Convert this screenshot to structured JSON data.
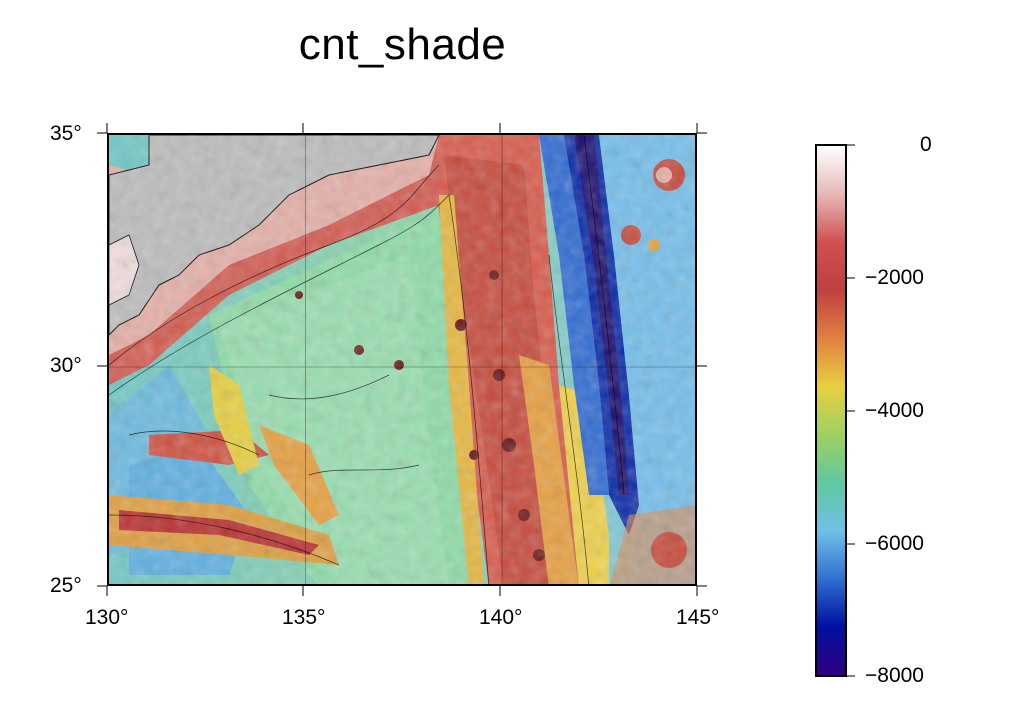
{
  "title": "cnt_shade",
  "map": {
    "lon_range": [
      130,
      145
    ],
    "lat_range": [
      25,
      35
    ],
    "x_ticks": [
      "130°",
      "135°",
      "140°",
      "145°"
    ],
    "y_ticks": [
      "25°",
      "30°",
      "35°"
    ],
    "grid": true,
    "land_color": "#bdbdbd"
  },
  "colorbar": {
    "range": [
      -8000,
      0
    ],
    "labels": [
      "0",
      "−2000",
      "−4000",
      "−6000",
      "−8000"
    ],
    "colors": [
      "#ffffff",
      "#e6b8b8",
      "#d05050",
      "#c04040",
      "#e08040",
      "#e8d040",
      "#a0d060",
      "#60c8a0",
      "#70c0e8",
      "#3070d0",
      "#0010a0",
      "#300080"
    ]
  }
}
